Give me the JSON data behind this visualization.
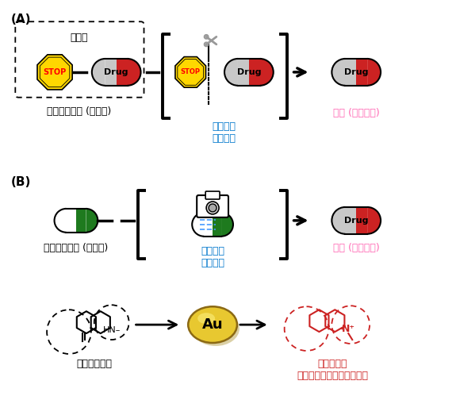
{
  "title_A": "(A)",
  "title_B": "(B)",
  "label_prodrug": "プロドラッグ (不活性)",
  "label_reaction": "生体内の\n化学反応",
  "label_drug_active": "薬剤 (活性あり)",
  "label_inactive": "不活性な構造",
  "label_active": "活性のある\nフェナントリジニウム構造",
  "label_hogo": "保護基",
  "label_stop": "STOP",
  "label_drug": "Drug",
  "label_au": "Au",
  "color_stop_fill": "#FFD700",
  "color_drug_red": "#CC2222",
  "color_drug_gray": "#C8C8C8",
  "color_reaction": "#0077CC",
  "color_active_label": "#FF69B4",
  "color_active_struct": "#CC2222",
  "color_green": "#1E7A1E",
  "color_black": "#000000",
  "color_white": "#FFFFFF",
  "bg_color": "#FFFFFF"
}
